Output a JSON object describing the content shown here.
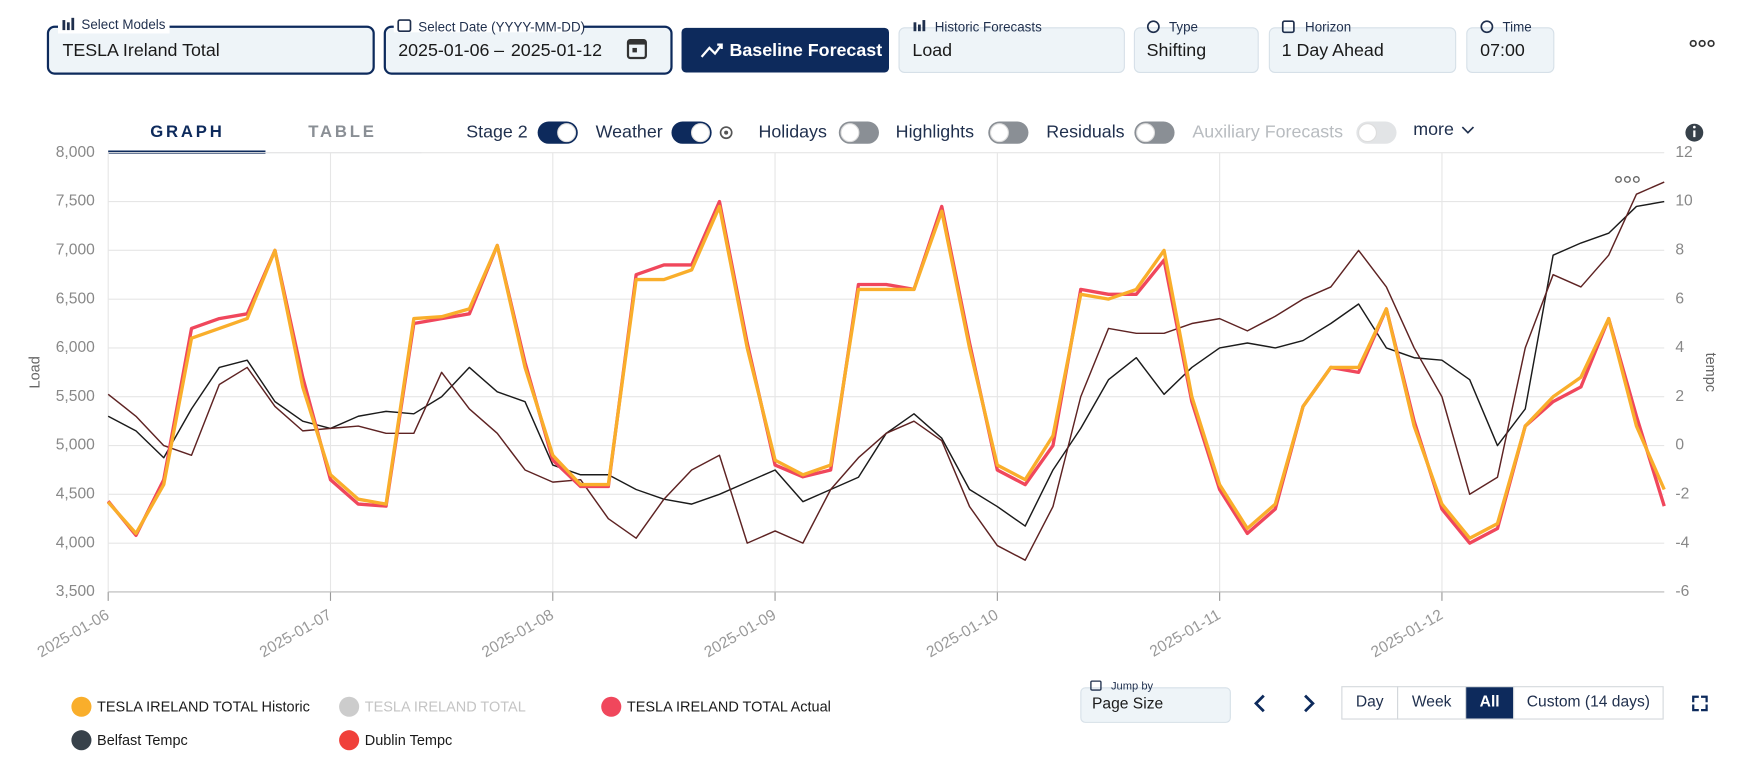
{
  "toolbar": {
    "models": {
      "label": "Select Models",
      "value": "TESLA Ireland Total"
    },
    "date": {
      "label": "Select Date (YYYY-MM-DD)",
      "start": "2025-01-06",
      "separator": "–",
      "end": "2025-01-12"
    },
    "forecast_button": "Baseline Forecast",
    "historic": {
      "label": "Historic Forecasts",
      "value": "Load"
    },
    "type": {
      "label": "Type",
      "value": "Shifting"
    },
    "horizon": {
      "label": "Horizon",
      "value": "1 Day Ahead"
    },
    "time": {
      "label": "Time",
      "value": "07:00"
    }
  },
  "tabs": [
    {
      "label": "GRAPH",
      "active": true
    },
    {
      "label": "TABLE",
      "active": false
    }
  ],
  "toggles": [
    {
      "label": "Stage 2",
      "on": true
    },
    {
      "label": "Weather",
      "on": true
    },
    {
      "label": "Holidays",
      "on": false
    },
    {
      "label": "Highlights",
      "on": false
    },
    {
      "label": "Residuals",
      "on": false
    },
    {
      "label": "Auxiliary Forecasts",
      "on": false,
      "disabled": true
    }
  ],
  "more": "more",
  "chart_data": {
    "type": "line",
    "ylabel": "Load",
    "y2label": "tempc",
    "x": [
      0,
      0.125,
      0.25,
      0.375,
      0.5,
      0.625,
      0.75,
      0.875,
      1,
      1.125,
      1.25,
      1.375,
      1.5,
      1.625,
      1.75,
      1.875,
      2,
      2.125,
      2.25,
      2.375,
      2.5,
      2.625,
      2.75,
      2.875,
      3,
      3.125,
      3.25,
      3.375,
      3.5,
      3.625,
      3.75,
      3.875,
      4,
      4.125,
      4.25,
      4.375,
      4.5,
      4.625,
      4.75,
      4.875,
      5,
      5.125,
      5.25,
      5.375,
      5.5,
      5.625,
      5.75,
      5.875,
      6,
      6.125,
      6.25,
      6.375,
      6.5,
      6.625,
      6.75,
      6.875,
      7
    ],
    "xlim": [
      0,
      7
    ],
    "xticks": [
      {
        "value": 0,
        "label": "2025-01-06"
      },
      {
        "value": 1,
        "label": "2025-01-07"
      },
      {
        "value": 2,
        "label": "2025-01-08"
      },
      {
        "value": 3,
        "label": "2025-01-09"
      },
      {
        "value": 4,
        "label": "2025-01-10"
      },
      {
        "value": 5,
        "label": "2025-01-11"
      },
      {
        "value": 6,
        "label": "2025-01-12"
      }
    ],
    "ylim": [
      3500,
      8000
    ],
    "yticks": [
      {
        "value": 3500,
        "label": "3,500"
      },
      {
        "value": 4000,
        "label": "4,000"
      },
      {
        "value": 4500,
        "label": "4,500"
      },
      {
        "value": 5000,
        "label": "5,000"
      },
      {
        "value": 5500,
        "label": "5,500"
      },
      {
        "value": 6000,
        "label": "6,000"
      },
      {
        "value": 6500,
        "label": "6,500"
      },
      {
        "value": 7000,
        "label": "7,000"
      },
      {
        "value": 7500,
        "label": "7,500"
      },
      {
        "value": 8000,
        "label": "8,000"
      }
    ],
    "y2lim": [
      -6,
      12
    ],
    "y2ticks": [
      -6,
      -4,
      -2,
      0,
      2,
      4,
      6,
      8,
      10,
      12
    ],
    "grid": true,
    "series": [
      {
        "name": "TESLA IRELAND TOTAL Historic",
        "color": "#f9ae2b",
        "values": [
          4420,
          4100,
          4600,
          6100,
          6200,
          6300,
          7000,
          5600,
          4700,
          4450,
          4400,
          6300,
          6320,
          6400,
          7050,
          5800,
          4900,
          4600,
          4600,
          6700,
          6700,
          6800,
          7450,
          6000,
          4850,
          4700,
          4800,
          6600,
          6600,
          6600,
          7400,
          6000,
          4800,
          4650,
          5100,
          6550,
          6500,
          6600,
          7000,
          5500,
          4600,
          4150,
          4400,
          5400,
          5800,
          5800,
          6400,
          5200,
          4400,
          4050,
          4200,
          5200,
          5500,
          5700,
          6300,
          5200,
          4550
        ]
      },
      {
        "name": "TESLA IRELAND TOTAL",
        "color": "#cccccc",
        "visible": false
      },
      {
        "name": "TESLA IRELAND TOTAL Actual",
        "color": "#f0475c",
        "values": [
          4430,
          4080,
          4650,
          6200,
          6300,
          6350,
          7000,
          5700,
          4650,
          4400,
          4380,
          6250,
          6300,
          6350,
          7050,
          5850,
          4850,
          4580,
          4580,
          6750,
          6850,
          6850,
          7500,
          6050,
          4800,
          4680,
          4750,
          6650,
          6650,
          6600,
          7450,
          6050,
          4750,
          4600,
          5000,
          6600,
          6550,
          6550,
          6900,
          5450,
          4550,
          4100,
          4350,
          5400,
          5800,
          5750,
          6400,
          5250,
          4350,
          4000,
          4150,
          5200,
          5450,
          5600,
          6300,
          5300,
          4380
        ]
      },
      {
        "name": "Belfast Tempc",
        "color": "#37414a",
        "line_color": "#1b1b1b",
        "axis": "y2",
        "values": [
          1.2,
          0.6,
          -0.5,
          1.5,
          3.2,
          3.5,
          1.8,
          1.0,
          0.7,
          1.2,
          1.4,
          1.3,
          2.0,
          3.2,
          2.2,
          1.8,
          -0.8,
          -1.2,
          -1.2,
          -1.8,
          -2.2,
          -2.4,
          -2.0,
          -1.5,
          -1.0,
          -2.3,
          -1.8,
          -1.3,
          0.5,
          1.3,
          0.3,
          -1.8,
          -2.5,
          -3.3,
          -1.0,
          0.7,
          2.7,
          3.6,
          2.1,
          3.2,
          4.0,
          4.2,
          4.0,
          4.3,
          5.0,
          5.8,
          4.0,
          3.6,
          3.5,
          2.7,
          0.0,
          1.5,
          7.8,
          8.3,
          8.7,
          9.8,
          10.0
        ]
      },
      {
        "name": "Dublin Tempc",
        "color": "#f0403a",
        "line_color": "#5e2323",
        "axis": "y2",
        "values": [
          2.1,
          1.2,
          0.0,
          -0.4,
          2.5,
          3.2,
          1.6,
          0.6,
          0.7,
          0.8,
          0.5,
          0.5,
          3.0,
          1.5,
          0.5,
          -1.0,
          -1.5,
          -1.4,
          -3.0,
          -3.8,
          -2.2,
          -1.0,
          -0.4,
          -4.0,
          -3.5,
          -4.0,
          -1.8,
          -0.5,
          0.5,
          1.0,
          0.2,
          -2.5,
          -4.1,
          -4.7,
          -2.5,
          2.0,
          4.8,
          4.6,
          4.6,
          5.0,
          5.2,
          4.7,
          5.3,
          6.0,
          6.5,
          8.0,
          6.5,
          4.0,
          2.0,
          -2.0,
          -1.3,
          4.0,
          7.0,
          6.5,
          7.8,
          10.3,
          10.8
        ]
      }
    ]
  },
  "navigation": {
    "jump_label": "Jump by",
    "jump_value": "Page Size",
    "ranges": [
      {
        "label": "Day",
        "active": false
      },
      {
        "label": "Week",
        "active": false
      },
      {
        "label": "All",
        "active": true
      },
      {
        "label": "Custom (14 days)",
        "active": false
      }
    ]
  }
}
